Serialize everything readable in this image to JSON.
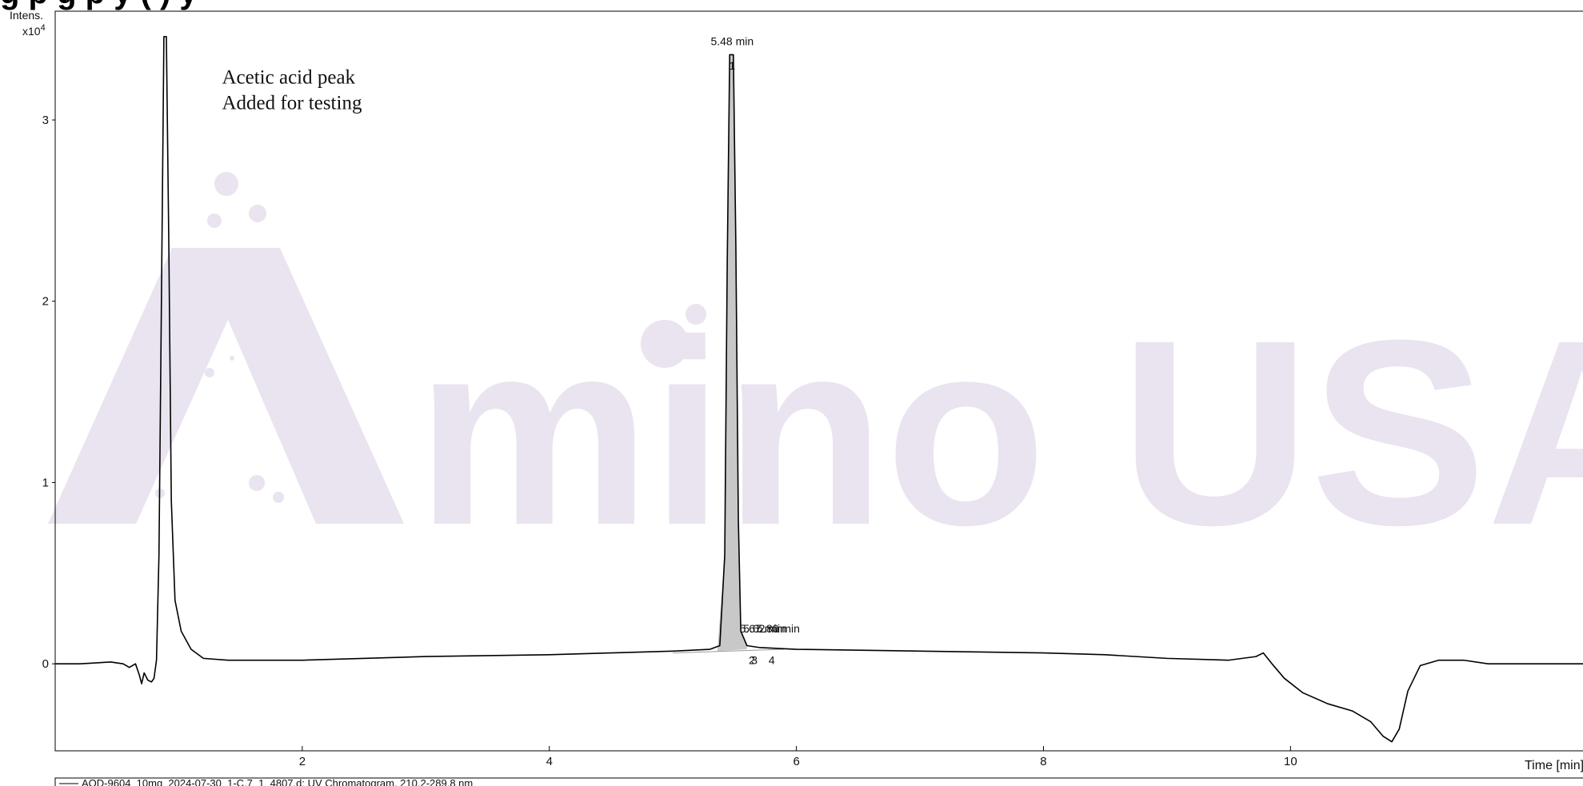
{
  "header": {
    "title_fragment": "g                        p              g  p y (    )            y"
  },
  "chart_data": {
    "type": "line",
    "title": "",
    "xlabel": "Time [min]",
    "ylabel": "Intens.",
    "y_multiplier_label": "x10",
    "y_multiplier_exp": "4",
    "xlim": [
      0,
      12.4
    ],
    "ylim": [
      -0.48,
      3.6
    ],
    "x_ticks": [
      2,
      4,
      6,
      8,
      10
    ],
    "y_ticks": [
      0,
      1,
      2,
      3
    ],
    "grid": false,
    "series": [
      {
        "name": "AOD-9604_10mg_2024-07-30_1-C,7_1_4807.d: UV Chromatogram, 210.2-289.8 nm",
        "color": "#000000",
        "points": [
          [
            0.0,
            0.0
          ],
          [
            0.2,
            0.0
          ],
          [
            0.45,
            0.01
          ],
          [
            0.55,
            0.0
          ],
          [
            0.6,
            -0.02
          ],
          [
            0.65,
            0.0
          ],
          [
            0.68,
            -0.06
          ],
          [
            0.7,
            -0.11
          ],
          [
            0.72,
            -0.05
          ],
          [
            0.75,
            -0.09
          ],
          [
            0.78,
            -0.1
          ],
          [
            0.8,
            -0.08
          ],
          [
            0.82,
            0.02
          ],
          [
            0.84,
            0.6
          ],
          [
            0.86,
            2.0
          ],
          [
            0.88,
            3.46
          ],
          [
            0.9,
            3.46
          ],
          [
            0.92,
            2.3
          ],
          [
            0.94,
            0.9
          ],
          [
            0.97,
            0.35
          ],
          [
            1.02,
            0.18
          ],
          [
            1.1,
            0.08
          ],
          [
            1.2,
            0.03
          ],
          [
            1.4,
            0.02
          ],
          [
            2.0,
            0.02
          ],
          [
            3.0,
            0.04
          ],
          [
            4.0,
            0.05
          ],
          [
            4.5,
            0.06
          ],
          [
            5.0,
            0.07
          ],
          [
            5.3,
            0.08
          ],
          [
            5.38,
            0.1
          ],
          [
            5.42,
            0.6
          ],
          [
            5.44,
            2.2
          ],
          [
            5.46,
            3.36
          ],
          [
            5.49,
            3.36
          ],
          [
            5.51,
            2.3
          ],
          [
            5.53,
            0.8
          ],
          [
            5.55,
            0.18
          ],
          [
            5.6,
            0.1
          ],
          [
            5.7,
            0.09
          ],
          [
            6.0,
            0.08
          ],
          [
            7.0,
            0.07
          ],
          [
            8.0,
            0.06
          ],
          [
            8.5,
            0.05
          ],
          [
            9.0,
            0.03
          ],
          [
            9.5,
            0.02
          ],
          [
            9.72,
            0.04
          ],
          [
            9.78,
            0.06
          ],
          [
            9.85,
            0.0
          ],
          [
            9.95,
            -0.08
          ],
          [
            10.1,
            -0.16
          ],
          [
            10.3,
            -0.22
          ],
          [
            10.5,
            -0.26
          ],
          [
            10.65,
            -0.32
          ],
          [
            10.75,
            -0.4
          ],
          [
            10.82,
            -0.43
          ],
          [
            10.88,
            -0.36
          ],
          [
            10.95,
            -0.15
          ],
          [
            11.05,
            -0.01
          ],
          [
            11.2,
            0.02
          ],
          [
            11.4,
            0.02
          ],
          [
            11.6,
            0.0
          ],
          [
            12.0,
            0.0
          ],
          [
            12.4,
            0.0
          ]
        ]
      }
    ],
    "integrated_region": {
      "color": "#c8c8c8",
      "points": [
        [
          5.36,
          0.07
        ],
        [
          5.42,
          0.6
        ],
        [
          5.44,
          2.2
        ],
        [
          5.46,
          3.36
        ],
        [
          5.49,
          3.36
        ],
        [
          5.51,
          2.3
        ],
        [
          5.53,
          0.8
        ],
        [
          5.55,
          0.18
        ],
        [
          5.6,
          0.1
        ],
        [
          5.6,
          0.08
        ]
      ]
    },
    "peak_labels": [
      {
        "text": "5.48 min",
        "x": 5.48,
        "y": 3.36
      },
      {
        "text": "1",
        "x": 5.48,
        "y": 3.34
      },
      {
        "text": "5.67 min",
        "x": 5.54,
        "y": 0.12
      },
      {
        "text": "5.62 min",
        "x": 5.57,
        "y": 0.12
      },
      {
        "text": "5.80 min",
        "x": 5.68,
        "y": 0.12
      },
      {
        "text": "2",
        "x": 5.64,
        "y": 0.06
      },
      {
        "text": "3",
        "x": 5.66,
        "y": 0.06
      },
      {
        "text": "4",
        "x": 5.8,
        "y": 0.06
      }
    ],
    "annotations": [
      {
        "text": "Acetic acid peak",
        "x": 1.35,
        "y": 3.2
      },
      {
        "text": "Added for testing",
        "x": 1.35,
        "y": 3.06
      }
    ]
  },
  "watermark": {
    "text": "Amino USA",
    "color": "#e9e4ef"
  }
}
